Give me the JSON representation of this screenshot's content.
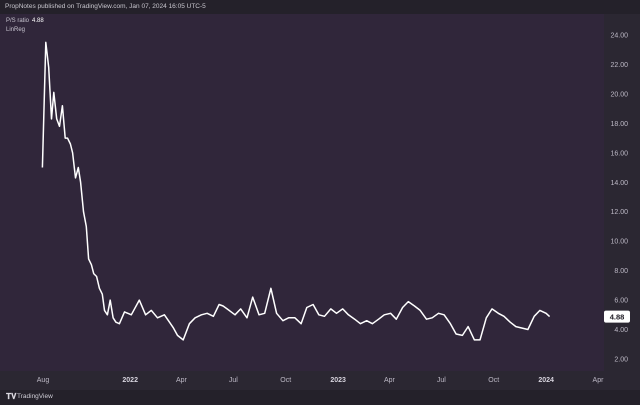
{
  "header": {
    "publisher_line": "PropNotes published on TradingView.com, Jan 07, 2024 16:05 UTC-5"
  },
  "legend": {
    "series_name": "P/S ratio",
    "last_value": "4.88",
    "sub_label": "LinReg"
  },
  "footer": {
    "logo_glyph": "𝐓𝐕",
    "brand": "TradingView"
  },
  "colors": {
    "background": "#30263a",
    "line": "#ffffff",
    "axis_text": "#bdb9c6",
    "last_value_box": "#ffffff"
  },
  "chart_data": {
    "type": "line",
    "title": "",
    "xlabel": "",
    "ylabel": "",
    "ylim": [
      1.5,
      25.5
    ],
    "y_ticks": [
      "24.00",
      "22.00",
      "20.00",
      "18.00",
      "16.00",
      "14.00",
      "12.00",
      "10.00",
      "8.00",
      "6.00",
      "4.00",
      "2.00"
    ],
    "y_tick_values": [
      24,
      22,
      20,
      18,
      16,
      14,
      12,
      10,
      8,
      6,
      4,
      2
    ],
    "x_ticks": [
      {
        "label": "Aug",
        "date": "2021-08-01",
        "bold": false
      },
      {
        "label": "2022",
        "date": "2022-01-01",
        "bold": true
      },
      {
        "label": "Apr",
        "date": "2022-04-01",
        "bold": false
      },
      {
        "label": "Jul",
        "date": "2022-07-01",
        "bold": false
      },
      {
        "label": "Oct",
        "date": "2022-10-01",
        "bold": false
      },
      {
        "label": "2023",
        "date": "2023-01-01",
        "bold": true
      },
      {
        "label": "Apr",
        "date": "2023-04-01",
        "bold": false
      },
      {
        "label": "Jul",
        "date": "2023-07-01",
        "bold": false
      },
      {
        "label": "Oct",
        "date": "2023-10-01",
        "bold": false
      },
      {
        "label": "2024",
        "date": "2024-01-01",
        "bold": true
      },
      {
        "label": "Apr",
        "date": "2024-04-01",
        "bold": false
      }
    ],
    "grid": false,
    "series": [
      {
        "color": "#ffffff",
        "x": [
          "2021-07-31",
          "2021-08-06",
          "2021-08-11",
          "2021-08-16",
          "2021-08-20",
          "2021-08-25",
          "2021-08-30",
          "2021-09-04",
          "2021-09-09",
          "2021-09-13",
          "2021-09-18",
          "2021-09-22",
          "2021-09-27",
          "2021-10-02",
          "2021-10-06",
          "2021-10-11",
          "2021-10-16",
          "2021-10-20",
          "2021-10-25",
          "2021-10-29",
          "2021-11-03",
          "2021-11-08",
          "2021-11-13",
          "2021-11-17",
          "2021-11-22",
          "2021-11-27",
          "2021-12-02",
          "2021-12-07",
          "2021-12-13",
          "2021-12-22",
          "2022-01-03",
          "2022-01-17",
          "2022-01-28",
          "2022-02-07",
          "2022-02-18",
          "2022-03-02",
          "2022-03-11",
          "2022-03-18",
          "2022-03-25",
          "2022-04-04",
          "2022-04-15",
          "2022-04-25",
          "2022-05-06",
          "2022-05-16",
          "2022-05-27",
          "2022-06-06",
          "2022-06-13",
          "2022-06-20",
          "2022-07-04",
          "2022-07-14",
          "2022-07-25",
          "2022-08-04",
          "2022-08-15",
          "2022-08-25",
          "2022-09-05",
          "2022-09-15",
          "2022-09-26",
          "2022-10-06",
          "2022-10-17",
          "2022-10-28",
          "2022-11-07",
          "2022-11-18",
          "2022-11-28",
          "2022-12-08",
          "2022-12-19",
          "2022-12-29",
          "2023-01-09",
          "2023-01-19",
          "2023-01-30",
          "2023-02-09",
          "2023-02-20",
          "2023-03-02",
          "2023-03-13",
          "2023-03-23",
          "2023-04-03",
          "2023-04-13",
          "2023-04-24",
          "2023-05-04",
          "2023-05-15",
          "2023-05-25",
          "2023-06-05",
          "2023-06-15",
          "2023-06-26",
          "2023-07-06",
          "2023-07-17",
          "2023-07-27",
          "2023-08-07",
          "2023-08-17",
          "2023-08-28",
          "2023-09-07",
          "2023-09-18",
          "2023-09-28",
          "2023-10-09",
          "2023-10-19",
          "2023-10-30",
          "2023-11-09",
          "2023-11-20",
          "2023-11-30",
          "2023-12-11",
          "2023-12-21",
          "2024-01-01",
          "2024-01-07"
        ],
        "y": [
          15.0,
          23.5,
          21.8,
          18.3,
          20.1,
          18.3,
          17.8,
          19.2,
          17.0,
          17.0,
          16.6,
          16.0,
          14.3,
          15.0,
          14.0,
          12.0,
          11.0,
          8.8,
          8.4,
          7.8,
          7.6,
          6.8,
          6.4,
          5.3,
          5.0,
          6.0,
          4.8,
          4.5,
          4.4,
          5.2,
          5.0,
          6.0,
          5.0,
          5.3,
          4.8,
          5.0,
          4.5,
          4.1,
          3.6,
          3.3,
          4.4,
          4.8,
          5.0,
          5.1,
          4.9,
          5.7,
          5.6,
          5.4,
          5.0,
          5.4,
          4.8,
          6.2,
          5.0,
          5.1,
          6.8,
          5.1,
          4.6,
          4.8,
          4.8,
          4.4,
          5.5,
          5.7,
          5.0,
          4.9,
          5.4,
          5.1,
          5.4,
          5.0,
          4.7,
          4.4,
          4.6,
          4.4,
          4.7,
          5.0,
          5.1,
          4.7,
          5.5,
          5.9,
          5.6,
          5.3,
          4.7,
          4.8,
          5.1,
          5.0,
          4.4,
          3.7,
          3.6,
          4.2,
          3.3,
          3.3,
          4.8,
          5.4,
          5.1,
          4.9,
          4.5,
          4.2,
          4.1,
          4.0,
          4.9,
          5.3,
          5.1,
          4.88
        ]
      }
    ],
    "last_value_label": "4.88"
  }
}
